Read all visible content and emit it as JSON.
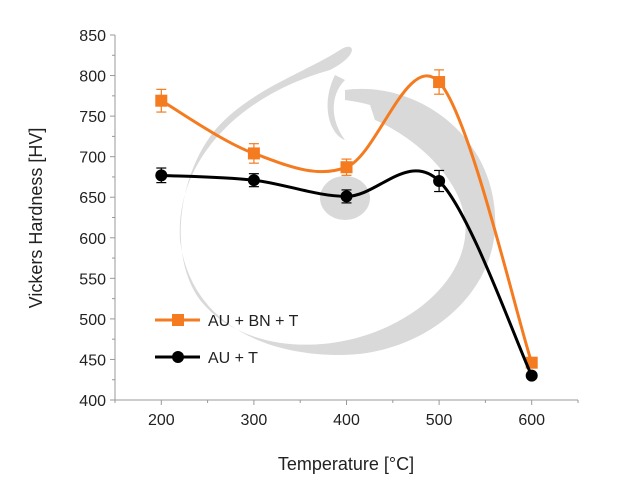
{
  "chart_data": {
    "type": "line",
    "title": "",
    "xlabel": "Temperature  [°C]",
    "ylabel": "Vickers Hardness [HV]",
    "xlim": [
      150,
      650
    ],
    "ylim": [
      400,
      850
    ],
    "xticks": [
      200,
      300,
      400,
      500,
      600
    ],
    "yticks": [
      400,
      450,
      500,
      550,
      600,
      650,
      700,
      750,
      800,
      850
    ],
    "grid": false,
    "smooth": true,
    "legend_position": "bottom-left",
    "x": [
      200,
      300,
      400,
      500,
      600
    ],
    "series": [
      {
        "name": "AU + BN + T",
        "color": "#F47B20",
        "marker": "square",
        "values": [
          769,
          704,
          687,
          792,
          446
        ],
        "errors": [
          14,
          12,
          10,
          15,
          4
        ]
      },
      {
        "name": "AU + T",
        "color": "#000000",
        "marker": "circle",
        "values": [
          677,
          671,
          651,
          670,
          430
        ],
        "errors": [
          9,
          8,
          8,
          13,
          3
        ]
      }
    ],
    "watermark_color": "#d9d9d9"
  }
}
